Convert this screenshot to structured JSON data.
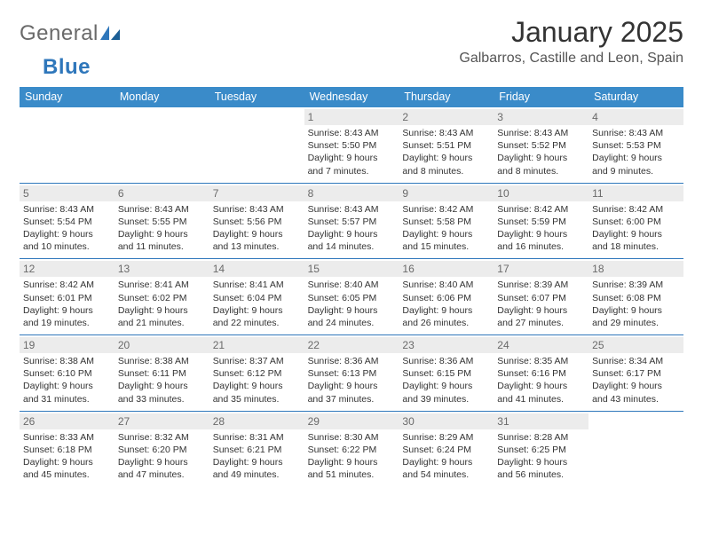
{
  "brand": {
    "general": "General",
    "blue": "Blue"
  },
  "title": "January 2025",
  "location": "Galbarros, Castille and Leon, Spain",
  "colors": {
    "header_bg": "#3a8bc9",
    "rule": "#2f77bb",
    "daynum_bg": "#ececec",
    "text": "#333333"
  },
  "days_of_week": [
    "Sunday",
    "Monday",
    "Tuesday",
    "Wednesday",
    "Thursday",
    "Friday",
    "Saturday"
  ],
  "weeks": [
    [
      {
        "n": "",
        "sr": "",
        "ss": "",
        "dl": ""
      },
      {
        "n": "",
        "sr": "",
        "ss": "",
        "dl": ""
      },
      {
        "n": "",
        "sr": "",
        "ss": "",
        "dl": ""
      },
      {
        "n": "1",
        "sr": "Sunrise: 8:43 AM",
        "ss": "Sunset: 5:50 PM",
        "dl": "Daylight: 9 hours and 7 minutes."
      },
      {
        "n": "2",
        "sr": "Sunrise: 8:43 AM",
        "ss": "Sunset: 5:51 PM",
        "dl": "Daylight: 9 hours and 8 minutes."
      },
      {
        "n": "3",
        "sr": "Sunrise: 8:43 AM",
        "ss": "Sunset: 5:52 PM",
        "dl": "Daylight: 9 hours and 8 minutes."
      },
      {
        "n": "4",
        "sr": "Sunrise: 8:43 AM",
        "ss": "Sunset: 5:53 PM",
        "dl": "Daylight: 9 hours and 9 minutes."
      }
    ],
    [
      {
        "n": "5",
        "sr": "Sunrise: 8:43 AM",
        "ss": "Sunset: 5:54 PM",
        "dl": "Daylight: 9 hours and 10 minutes."
      },
      {
        "n": "6",
        "sr": "Sunrise: 8:43 AM",
        "ss": "Sunset: 5:55 PM",
        "dl": "Daylight: 9 hours and 11 minutes."
      },
      {
        "n": "7",
        "sr": "Sunrise: 8:43 AM",
        "ss": "Sunset: 5:56 PM",
        "dl": "Daylight: 9 hours and 13 minutes."
      },
      {
        "n": "8",
        "sr": "Sunrise: 8:43 AM",
        "ss": "Sunset: 5:57 PM",
        "dl": "Daylight: 9 hours and 14 minutes."
      },
      {
        "n": "9",
        "sr": "Sunrise: 8:42 AM",
        "ss": "Sunset: 5:58 PM",
        "dl": "Daylight: 9 hours and 15 minutes."
      },
      {
        "n": "10",
        "sr": "Sunrise: 8:42 AM",
        "ss": "Sunset: 5:59 PM",
        "dl": "Daylight: 9 hours and 16 minutes."
      },
      {
        "n": "11",
        "sr": "Sunrise: 8:42 AM",
        "ss": "Sunset: 6:00 PM",
        "dl": "Daylight: 9 hours and 18 minutes."
      }
    ],
    [
      {
        "n": "12",
        "sr": "Sunrise: 8:42 AM",
        "ss": "Sunset: 6:01 PM",
        "dl": "Daylight: 9 hours and 19 minutes."
      },
      {
        "n": "13",
        "sr": "Sunrise: 8:41 AM",
        "ss": "Sunset: 6:02 PM",
        "dl": "Daylight: 9 hours and 21 minutes."
      },
      {
        "n": "14",
        "sr": "Sunrise: 8:41 AM",
        "ss": "Sunset: 6:04 PM",
        "dl": "Daylight: 9 hours and 22 minutes."
      },
      {
        "n": "15",
        "sr": "Sunrise: 8:40 AM",
        "ss": "Sunset: 6:05 PM",
        "dl": "Daylight: 9 hours and 24 minutes."
      },
      {
        "n": "16",
        "sr": "Sunrise: 8:40 AM",
        "ss": "Sunset: 6:06 PM",
        "dl": "Daylight: 9 hours and 26 minutes."
      },
      {
        "n": "17",
        "sr": "Sunrise: 8:39 AM",
        "ss": "Sunset: 6:07 PM",
        "dl": "Daylight: 9 hours and 27 minutes."
      },
      {
        "n": "18",
        "sr": "Sunrise: 8:39 AM",
        "ss": "Sunset: 6:08 PM",
        "dl": "Daylight: 9 hours and 29 minutes."
      }
    ],
    [
      {
        "n": "19",
        "sr": "Sunrise: 8:38 AM",
        "ss": "Sunset: 6:10 PM",
        "dl": "Daylight: 9 hours and 31 minutes."
      },
      {
        "n": "20",
        "sr": "Sunrise: 8:38 AM",
        "ss": "Sunset: 6:11 PM",
        "dl": "Daylight: 9 hours and 33 minutes."
      },
      {
        "n": "21",
        "sr": "Sunrise: 8:37 AM",
        "ss": "Sunset: 6:12 PM",
        "dl": "Daylight: 9 hours and 35 minutes."
      },
      {
        "n": "22",
        "sr": "Sunrise: 8:36 AM",
        "ss": "Sunset: 6:13 PM",
        "dl": "Daylight: 9 hours and 37 minutes."
      },
      {
        "n": "23",
        "sr": "Sunrise: 8:36 AM",
        "ss": "Sunset: 6:15 PM",
        "dl": "Daylight: 9 hours and 39 minutes."
      },
      {
        "n": "24",
        "sr": "Sunrise: 8:35 AM",
        "ss": "Sunset: 6:16 PM",
        "dl": "Daylight: 9 hours and 41 minutes."
      },
      {
        "n": "25",
        "sr": "Sunrise: 8:34 AM",
        "ss": "Sunset: 6:17 PM",
        "dl": "Daylight: 9 hours and 43 minutes."
      }
    ],
    [
      {
        "n": "26",
        "sr": "Sunrise: 8:33 AM",
        "ss": "Sunset: 6:18 PM",
        "dl": "Daylight: 9 hours and 45 minutes."
      },
      {
        "n": "27",
        "sr": "Sunrise: 8:32 AM",
        "ss": "Sunset: 6:20 PM",
        "dl": "Daylight: 9 hours and 47 minutes."
      },
      {
        "n": "28",
        "sr": "Sunrise: 8:31 AM",
        "ss": "Sunset: 6:21 PM",
        "dl": "Daylight: 9 hours and 49 minutes."
      },
      {
        "n": "29",
        "sr": "Sunrise: 8:30 AM",
        "ss": "Sunset: 6:22 PM",
        "dl": "Daylight: 9 hours and 51 minutes."
      },
      {
        "n": "30",
        "sr": "Sunrise: 8:29 AM",
        "ss": "Sunset: 6:24 PM",
        "dl": "Daylight: 9 hours and 54 minutes."
      },
      {
        "n": "31",
        "sr": "Sunrise: 8:28 AM",
        "ss": "Sunset: 6:25 PM",
        "dl": "Daylight: 9 hours and 56 minutes."
      },
      {
        "n": "",
        "sr": "",
        "ss": "",
        "dl": ""
      }
    ]
  ]
}
